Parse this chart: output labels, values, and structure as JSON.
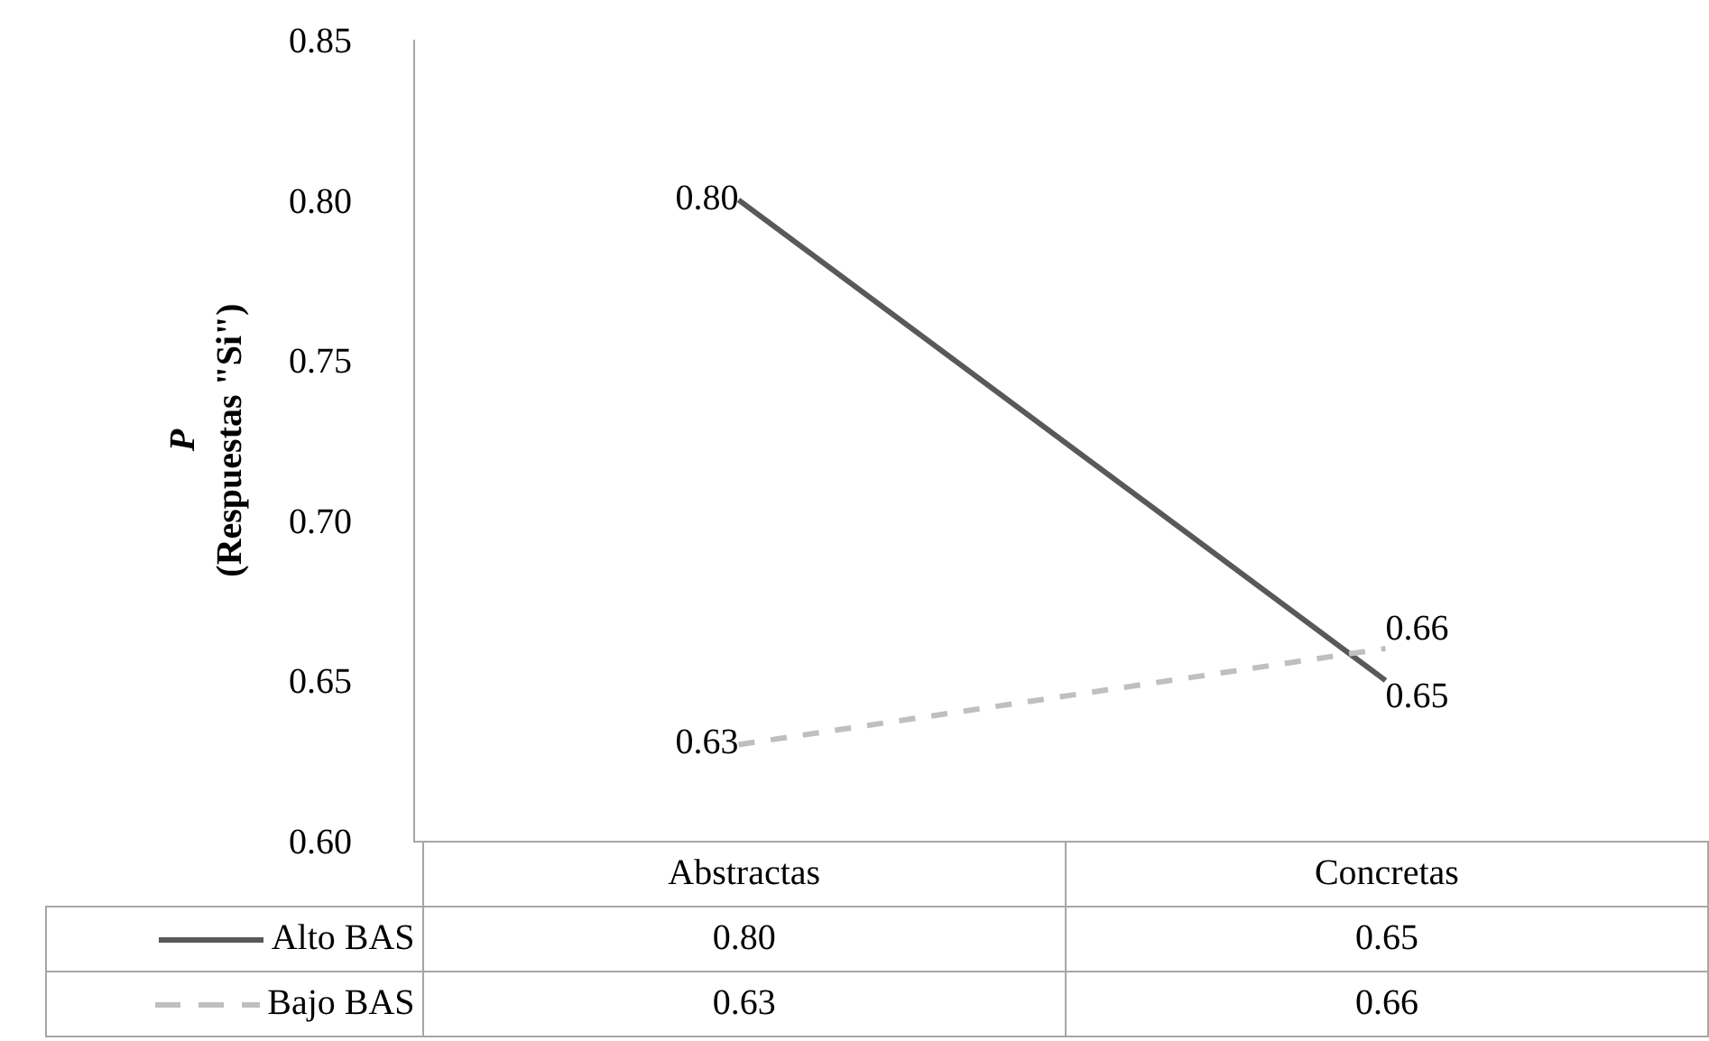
{
  "chart_data": {
    "type": "line",
    "ylabel": "P\n(Respuestas \"Si\")",
    "categories": [
      "Abstractas",
      "Concretas"
    ],
    "series": [
      {
        "name": "Alto BAS",
        "color": "#595959",
        "line_style": "solid",
        "values": [
          0.8,
          0.65
        ],
        "value_labels": [
          "0.80",
          "0.65"
        ]
      },
      {
        "name": "Bajo BAS",
        "color": "#bfbfbf",
        "line_style": "dashed",
        "values": [
          0.63,
          0.66
        ],
        "value_labels": [
          "0.63",
          "0.66"
        ]
      }
    ],
    "ylim": [
      0.6,
      0.85
    ],
    "yticks": [
      {
        "value": 0.6,
        "label": "0.60"
      },
      {
        "value": 0.65,
        "label": "0.65"
      },
      {
        "value": 0.7,
        "label": "0.70"
      },
      {
        "value": 0.75,
        "label": "0.75"
      },
      {
        "value": 0.8,
        "label": "0.80"
      },
      {
        "value": 0.85,
        "label": "0.85"
      }
    ],
    "grid": false,
    "legend": "bottom",
    "marker": "none"
  }
}
